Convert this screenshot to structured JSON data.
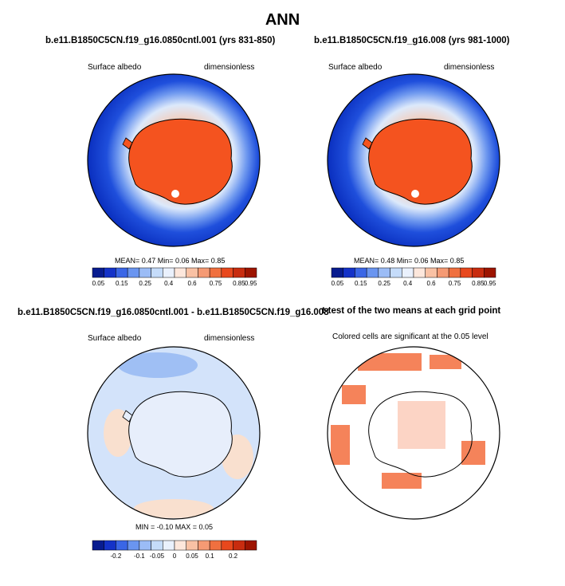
{
  "figure": {
    "title": "ANN",
    "colors": {
      "ocean_dark": "#0a2fbf",
      "ocean_mid": "#2e63e6",
      "ice_light": "#bcd7f7",
      "continent": "#f4531f",
      "diff_blue": "#c9ddf8",
      "diff_tan": "#f9e0cf",
      "sig": "#f5835a"
    }
  },
  "panels": [
    {
      "title": "b.e11.B1850C5CN.f19_g16.0850cntl.001 (yrs 831-850)",
      "left_label": "Surface albedo",
      "right_label": "dimensionless",
      "stats": "MEAN=  0.47  Min=  0.06  Max=  0.85",
      "colorbar_labels": [
        "0.05",
        "0.15",
        "0.25",
        "0.4",
        "0.6",
        "0.75",
        "0.85",
        "0.95"
      ],
      "colorbar_colors": [
        "#081c8f",
        "#1432c8",
        "#3a66e6",
        "#6a95f0",
        "#9bbcf6",
        "#c5dcfa",
        "#eaf1fd",
        "#fde7dc",
        "#f9c1a4",
        "#f59a74",
        "#f0703f",
        "#e8481d",
        "#c82c0f",
        "#9d1400"
      ]
    },
    {
      "title": "b.e11.B1850C5CN.f19_g16.008 (yrs 981-1000)",
      "left_label": "Surface albedo",
      "right_label": "dimensionless",
      "stats": "MEAN=  0.48  Min=  0.06  Max=  0.85",
      "colorbar_labels": [
        "0.05",
        "0.15",
        "0.25",
        "0.4",
        "0.6",
        "0.75",
        "0.85",
        "0.95"
      ],
      "colorbar_colors": [
        "#081c8f",
        "#1432c8",
        "#3a66e6",
        "#6a95f0",
        "#9bbcf6",
        "#c5dcfa",
        "#eaf1fd",
        "#fde7dc",
        "#f9c1a4",
        "#f59a74",
        "#f0703f",
        "#e8481d",
        "#c82c0f",
        "#9d1400"
      ]
    },
    {
      "title": "b.e11.B1850C5CN.f19_g16.0850cntl.001 - b.e11.B1850C5CN.f19_g16.008",
      "left_label": "Surface albedo",
      "right_label": "dimensionless",
      "stats": "MIN =  -0.10  MAX =  0.05",
      "colorbar_labels": [
        "-0.2",
        "-0.1",
        "-0.05",
        "0",
        "0.05",
        "0.1",
        "0.2"
      ],
      "colorbar_colors": [
        "#081c8f",
        "#1432c8",
        "#3a66e6",
        "#6a95f0",
        "#9bbcf6",
        "#c5dcfa",
        "#eaf1fd",
        "#fde7dc",
        "#f9c1a4",
        "#f59a74",
        "#f0703f",
        "#e8481d",
        "#c82c0f",
        "#9d1400"
      ]
    },
    {
      "title": "t-test of the two means at each grid point",
      "subtitle": "Colored cells are significant at the 0.05 level"
    }
  ]
}
